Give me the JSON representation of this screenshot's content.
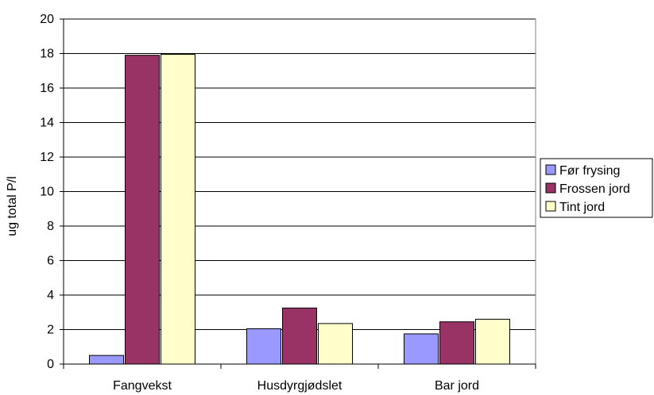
{
  "chart_data": {
    "type": "bar",
    "title": "",
    "xlabel": "",
    "ylabel": "ug total P/l",
    "ylim": [
      0,
      20
    ],
    "yticks": [
      0,
      2,
      4,
      6,
      8,
      10,
      12,
      14,
      16,
      18,
      20
    ],
    "grid": true,
    "legend_position": "right",
    "categories": [
      "Fangvekst",
      "Husdyrgjødslet",
      "Bar jord"
    ],
    "series": [
      {
        "name": "Før frysing",
        "color": "#9999ff",
        "values": [
          0.5,
          2.05,
          1.75
        ]
      },
      {
        "name": "Frossen jord",
        "color": "#993366",
        "values": [
          17.9,
          3.25,
          2.45
        ]
      },
      {
        "name": "Tint jord",
        "color": "#ffffcc",
        "values": [
          17.95,
          2.35,
          2.6
        ]
      }
    ]
  }
}
